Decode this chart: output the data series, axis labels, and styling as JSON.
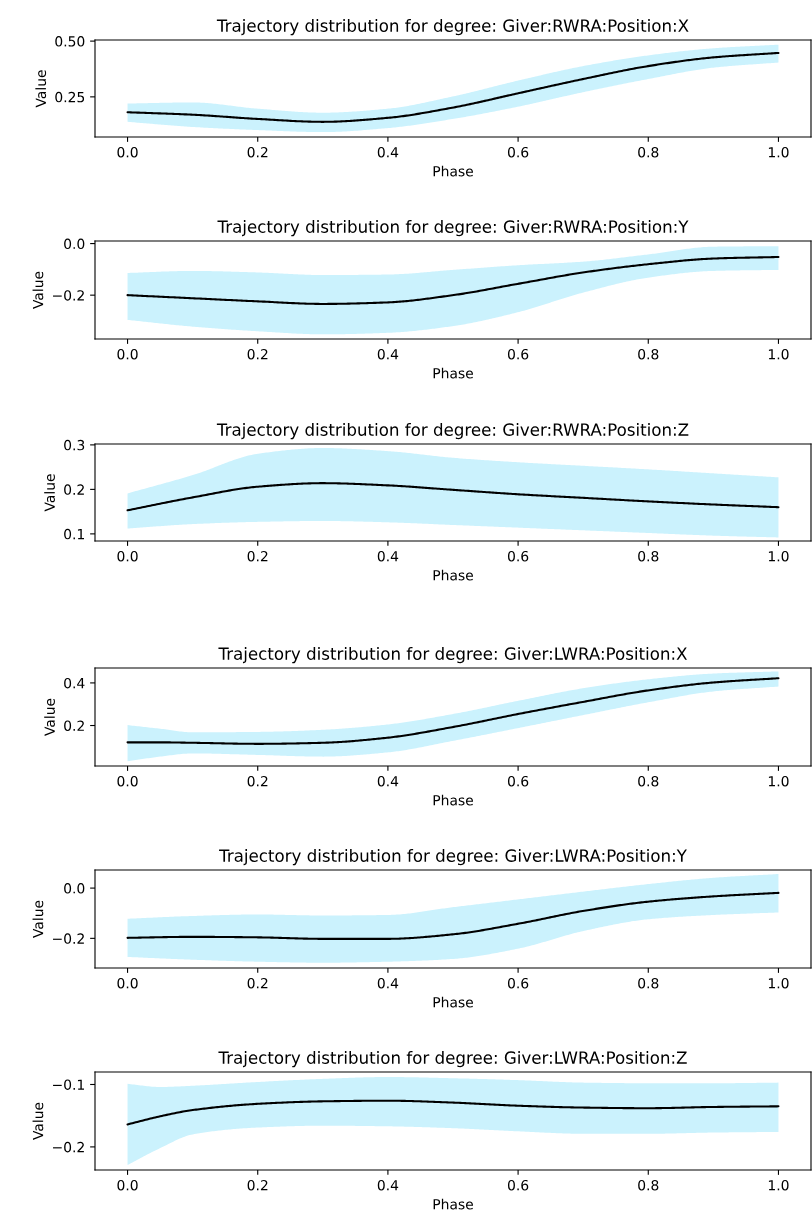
{
  "chart_data": [
    {
      "type": "line",
      "title": "Trajectory distribution for degree: Giver:RWRA:Position:X",
      "xlabel": "Phase",
      "ylabel": "Value",
      "x": [
        0.0,
        0.1,
        0.2,
        0.3,
        0.4,
        0.5,
        0.6,
        0.7,
        0.8,
        0.9,
        1.0
      ],
      "series": [
        {
          "color": "#000000",
          "values": [
            0.181,
            0.17,
            0.151,
            0.138,
            0.156,
            0.202,
            0.266,
            0.33,
            0.388,
            0.427,
            0.447
          ],
          "lower": [
            0.138,
            0.115,
            0.101,
            0.092,
            0.11,
            0.151,
            0.206,
            0.271,
            0.33,
            0.381,
            0.404
          ],
          "upper": [
            0.22,
            0.225,
            0.197,
            0.179,
            0.197,
            0.252,
            0.323,
            0.388,
            0.436,
            0.468,
            0.484
          ]
        }
      ],
      "xlim": [
        -0.05,
        1.05
      ],
      "xticks": [
        {
          "value": 0,
          "label": "0.0"
        },
        {
          "value": 0.2,
          "label": "0.2"
        },
        {
          "value": 0.4,
          "label": "0.4"
        },
        {
          "value": 0.6,
          "label": "0.6"
        },
        {
          "value": 0.8,
          "label": "0.8"
        },
        {
          "value": 1,
          "label": "1.0"
        }
      ],
      "ylim": [
        0.07,
        0.505
      ],
      "yticks": [
        0.25,
        {
          "value": 0.5,
          "label": "0.50"
        }
      ]
    },
    {
      "type": "line",
      "title": "Trajectory distribution for degree: Giver:RWRA:Position:Y",
      "xlabel": "Phase",
      "ylabel": "Value",
      "x": [
        0.0,
        0.1,
        0.2,
        0.3,
        0.4,
        0.5,
        0.6,
        0.7,
        0.8,
        0.9,
        1.0
      ],
      "series": [
        {
          "color": "#000000",
          "values": [
            -0.2,
            -0.212,
            -0.224,
            -0.234,
            -0.228,
            -0.2,
            -0.156,
            -0.112,
            -0.08,
            -0.058,
            -0.052
          ],
          "lower": [
            -0.296,
            -0.322,
            -0.34,
            -0.352,
            -0.346,
            -0.32,
            -0.266,
            -0.19,
            -0.132,
            -0.106,
            -0.102
          ],
          "upper": [
            -0.114,
            -0.106,
            -0.112,
            -0.122,
            -0.12,
            -0.102,
            -0.084,
            -0.07,
            -0.042,
            -0.012,
            -0.01
          ]
        }
      ],
      "xlim": [
        -0.05,
        1.05
      ],
      "xticks": [
        {
          "value": 0,
          "label": "0.0"
        },
        {
          "value": 0.2,
          "label": "0.2"
        },
        {
          "value": 0.4,
          "label": "0.4"
        },
        {
          "value": 0.6,
          "label": "0.6"
        },
        {
          "value": 0.8,
          "label": "0.8"
        },
        {
          "value": 1,
          "label": "1.0"
        }
      ],
      "ylim": [
        -0.37,
        0.01
      ],
      "yticks": [
        {
          "value": -0.2,
          "label": "−0.2"
        },
        {
          "value": 0,
          "label": "0.0"
        }
      ]
    },
    {
      "type": "line",
      "title": "Trajectory distribution for degree: Giver:RWRA:Position:Z",
      "xlabel": "Phase",
      "ylabel": "Value",
      "x": [
        0.0,
        0.1,
        0.2,
        0.3,
        0.4,
        0.5,
        0.6,
        0.7,
        0.8,
        0.9,
        1.0
      ],
      "series": [
        {
          "color": "#000000",
          "values": [
            0.153,
            0.182,
            0.206,
            0.214,
            0.209,
            0.199,
            0.189,
            0.181,
            0.173,
            0.166,
            0.16
          ],
          "lower": [
            0.112,
            0.122,
            0.127,
            0.129,
            0.126,
            0.12,
            0.114,
            0.108,
            0.102,
            0.096,
            0.092
          ],
          "upper": [
            0.191,
            0.232,
            0.28,
            0.293,
            0.286,
            0.271,
            0.261,
            0.253,
            0.245,
            0.236,
            0.227
          ]
        }
      ],
      "xlim": [
        -0.05,
        1.05
      ],
      "xticks": [
        {
          "value": 0,
          "label": "0.0"
        },
        {
          "value": 0.2,
          "label": "0.2"
        },
        {
          "value": 0.4,
          "label": "0.4"
        },
        {
          "value": 0.6,
          "label": "0.6"
        },
        {
          "value": 0.8,
          "label": "0.8"
        },
        {
          "value": 1,
          "label": "1.0"
        }
      ],
      "ylim": [
        0.084,
        0.302
      ],
      "yticks": [
        0.1,
        0.2,
        0.3
      ]
    },
    {
      "type": "line",
      "title": "Trajectory distribution for degree: Giver:LWRA:Position:X",
      "xlabel": "Phase",
      "ylabel": "Value",
      "x": [
        0.0,
        0.05,
        0.1,
        0.2,
        0.3,
        0.4,
        0.5,
        0.6,
        0.7,
        0.8,
        0.9,
        1.0
      ],
      "series": [
        {
          "color": "#000000",
          "values": [
            0.121,
            0.121,
            0.119,
            0.114,
            0.119,
            0.143,
            0.193,
            0.254,
            0.311,
            0.365,
            0.402,
            0.422
          ],
          "lower": [
            0.032,
            0.054,
            0.069,
            0.062,
            0.054,
            0.074,
            0.128,
            0.188,
            0.249,
            0.309,
            0.36,
            0.383
          ],
          "upper": [
            0.202,
            0.185,
            0.168,
            0.17,
            0.18,
            0.205,
            0.254,
            0.316,
            0.375,
            0.417,
            0.444,
            0.454
          ]
        }
      ],
      "xlim": [
        -0.05,
        1.05
      ],
      "xticks": [
        {
          "value": 0,
          "label": "0.0"
        },
        {
          "value": 0.2,
          "label": "0.2"
        },
        {
          "value": 0.4,
          "label": "0.4"
        },
        {
          "value": 0.6,
          "label": "0.6"
        },
        {
          "value": 0.8,
          "label": "0.8"
        },
        {
          "value": 1,
          "label": "1.0"
        }
      ],
      "ylim": [
        0.01,
        0.47
      ],
      "yticks": [
        0.2,
        0.4
      ]
    },
    {
      "type": "line",
      "title": "Trajectory distribution for degree: Giver:LWRA:Position:Y",
      "xlabel": "Phase",
      "ylabel": "Value",
      "x": [
        0.0,
        0.1,
        0.2,
        0.3,
        0.4,
        0.5,
        0.6,
        0.7,
        0.8,
        0.9,
        1.0
      ],
      "series": [
        {
          "color": "#000000",
          "values": [
            -0.198,
            -0.194,
            -0.196,
            -0.202,
            -0.202,
            -0.184,
            -0.142,
            -0.091,
            -0.054,
            -0.033,
            -0.019
          ],
          "lower": [
            -0.274,
            -0.285,
            -0.293,
            -0.297,
            -0.293,
            -0.282,
            -0.241,
            -0.171,
            -0.124,
            -0.107,
            -0.097
          ],
          "upper": [
            -0.122,
            -0.111,
            -0.105,
            -0.109,
            -0.107,
            -0.076,
            -0.045,
            -0.014,
            0.016,
            0.041,
            0.056
          ]
        }
      ],
      "xlim": [
        -0.05,
        1.05
      ],
      "xticks": [
        {
          "value": 0,
          "label": "0.0"
        },
        {
          "value": 0.2,
          "label": "0.2"
        },
        {
          "value": 0.4,
          "label": "0.4"
        },
        {
          "value": 0.6,
          "label": "0.6"
        },
        {
          "value": 0.8,
          "label": "0.8"
        },
        {
          "value": 1,
          "label": "1.0"
        }
      ],
      "ylim": [
        -0.318,
        0.072
      ],
      "yticks": [
        {
          "value": -0.2,
          "label": "−0.2"
        },
        {
          "value": 0,
          "label": "0.0"
        }
      ]
    },
    {
      "type": "line",
      "title": "Trajectory distribution for degree: Giver:LWRA:Position:Z",
      "xlabel": "Phase",
      "ylabel": "Value",
      "x": [
        0.0,
        0.05,
        0.1,
        0.2,
        0.3,
        0.4,
        0.5,
        0.6,
        0.7,
        0.8,
        0.9,
        1.0
      ],
      "series": [
        {
          "color": "#000000",
          "values": [
            -0.164,
            -0.151,
            -0.141,
            -0.131,
            -0.127,
            -0.126,
            -0.129,
            -0.134,
            -0.137,
            -0.138,
            -0.136,
            -0.135
          ],
          "lower": [
            -0.229,
            -0.202,
            -0.18,
            -0.169,
            -0.166,
            -0.167,
            -0.17,
            -0.175,
            -0.179,
            -0.179,
            -0.177,
            -0.176
          ],
          "upper": [
            -0.099,
            -0.104,
            -0.102,
            -0.096,
            -0.091,
            -0.088,
            -0.09,
            -0.093,
            -0.097,
            -0.098,
            -0.098,
            -0.097
          ]
        }
      ],
      "xlim": [
        -0.05,
        1.05
      ],
      "xticks": [
        {
          "value": 0,
          "label": "0.0"
        },
        {
          "value": 0.2,
          "label": "0.2"
        },
        {
          "value": 0.4,
          "label": "0.4"
        },
        {
          "value": 0.6,
          "label": "0.6"
        },
        {
          "value": 0.8,
          "label": "0.8"
        },
        {
          "value": 1,
          "label": "1.0"
        }
      ],
      "ylim": [
        -0.237,
        -0.08
      ],
      "yticks": [
        {
          "value": -0.2,
          "label": "−0.2"
        },
        {
          "value": -0.1,
          "label": "−0.1"
        }
      ]
    }
  ]
}
